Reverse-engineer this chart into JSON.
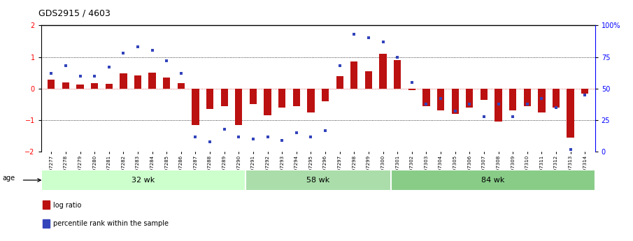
{
  "title": "GDS2915 / 4603",
  "samples": [
    "GSM97277",
    "GSM97278",
    "GSM97279",
    "GSM97280",
    "GSM97281",
    "GSM97282",
    "GSM97283",
    "GSM97284",
    "GSM97285",
    "GSM97286",
    "GSM97287",
    "GSM97288",
    "GSM97289",
    "GSM97290",
    "GSM97291",
    "GSM97292",
    "GSM97293",
    "GSM97294",
    "GSM97295",
    "GSM97296",
    "GSM97297",
    "GSM97298",
    "GSM97299",
    "GSM97300",
    "GSM97301",
    "GSM97302",
    "GSM97303",
    "GSM97304",
    "GSM97305",
    "GSM97306",
    "GSM97307",
    "GSM97308",
    "GSM97309",
    "GSM97310",
    "GSM97311",
    "GSM97312",
    "GSM97313",
    "GSM97314"
  ],
  "log_ratio": [
    0.28,
    0.2,
    0.12,
    0.18,
    0.15,
    0.48,
    0.42,
    0.5,
    0.35,
    0.18,
    -1.15,
    -0.65,
    -0.55,
    -1.15,
    -0.5,
    -0.85,
    -0.6,
    -0.55,
    -0.75,
    -0.4,
    0.4,
    0.85,
    0.55,
    1.1,
    0.9,
    -0.05,
    -0.55,
    -0.7,
    -0.8,
    -0.6,
    -0.35,
    -1.05,
    -0.7,
    -0.55,
    -0.75,
    -0.6,
    -1.55,
    -0.15
  ],
  "percentile_pct": [
    62,
    68,
    60,
    60,
    67,
    78,
    83,
    80,
    72,
    62,
    12,
    8,
    18,
    12,
    10,
    12,
    9,
    15,
    12,
    17,
    68,
    93,
    90,
    87,
    75,
    55,
    38,
    42,
    32,
    38,
    28,
    38,
    28,
    38,
    42,
    35,
    2,
    45
  ],
  "groups": [
    {
      "label": "32 wk",
      "start": 0,
      "end": 14,
      "color": "#ccffcc"
    },
    {
      "label": "58 wk",
      "start": 14,
      "end": 24,
      "color": "#aaddaa"
    },
    {
      "label": "84 wk",
      "start": 24,
      "end": 38,
      "color": "#88cc88"
    }
  ],
  "bar_color": "#bb1111",
  "dot_color": "#3344bb",
  "ylim": [
    -2,
    2
  ],
  "yticks_left": [
    -2,
    -1,
    0,
    1,
    2
  ],
  "yticks_right_pct": [
    0,
    25,
    50,
    75,
    100
  ],
  "yticks_right_labels": [
    "0",
    "25",
    "50",
    "75",
    "100%"
  ],
  "hlines_dotted": [
    -1,
    1
  ],
  "hline_zero_color": "#cc3333",
  "bg_color": "#ffffff"
}
